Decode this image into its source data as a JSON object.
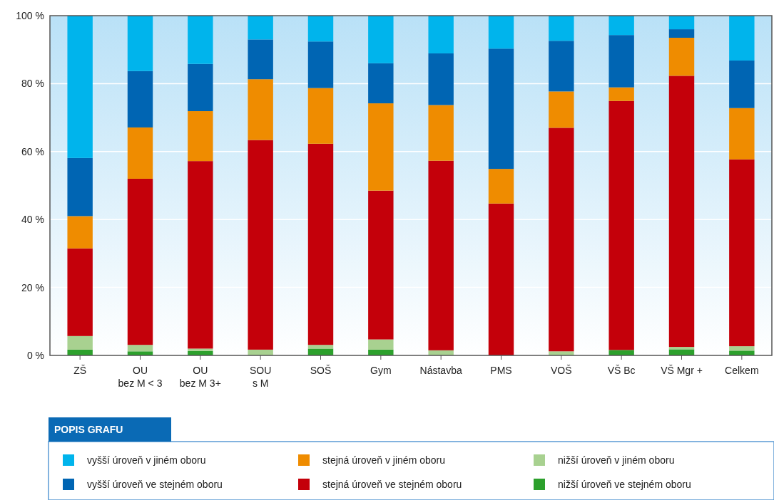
{
  "chart_data": {
    "type": "bar",
    "stacked": true,
    "categories": [
      "ZŠ",
      "OU\nbez M < 3",
      "OU\nbez M 3+",
      "SOU\ns M",
      "SOŠ",
      "Gym",
      "Nástavba",
      "PMS",
      "VOŠ",
      "VŠ Bc",
      "VŠ Mgr +",
      "Celkem"
    ],
    "series": [
      {
        "name": "nižší úroveň ve stejném oboru",
        "color": "#2ca02c",
        "values": [
          1.7,
          1.2,
          1.3,
          0,
          2.0,
          1.7,
          0,
          0,
          0,
          1.6,
          1.8,
          1.4
        ]
      },
      {
        "name": "nižší úroveň v jiném oboru",
        "color": "#a8d190",
        "values": [
          4.0,
          1.9,
          0.7,
          1.7,
          1.1,
          3.0,
          1.5,
          0,
          1.2,
          0,
          0.7,
          1.3
        ]
      },
      {
        "name": "stejná úroveň ve stejném oboru",
        "color": "#c4000a",
        "values": [
          25.8,
          48.9,
          55.2,
          61.7,
          59.2,
          43.8,
          55.8,
          44.7,
          65.8,
          73.3,
          79.8,
          55.0
        ]
      },
      {
        "name": "stejná úroveň v jiném oboru",
        "color": "#ef8c00",
        "values": [
          9.5,
          15.1,
          14.7,
          17.9,
          16.4,
          25.7,
          16.4,
          10.2,
          10.7,
          4.0,
          11.2,
          15.1
        ]
      },
      {
        "name": "vyšší úroveň ve stejném oboru",
        "color": "#0065b3",
        "values": [
          17.1,
          16.6,
          13.9,
          11.7,
          13.7,
          11.8,
          15.2,
          35.4,
          14.9,
          15.4,
          2.5,
          14.0
        ]
      },
      {
        "name": "vyšší úroveň v jiném oboru",
        "color": "#00b4ec",
        "values": [
          41.9,
          16.3,
          14.2,
          7.0,
          7.6,
          14.0,
          11.1,
          9.7,
          7.4,
          5.7,
          4.0,
          13.2
        ]
      }
    ],
    "ylim": [
      0,
      100
    ],
    "yticks": [
      {
        "value": 0,
        "label": "0 %"
      },
      {
        "value": 20,
        "label": "20 %"
      },
      {
        "value": 40,
        "label": "40 %"
      },
      {
        "value": 60,
        "label": "60 %"
      },
      {
        "value": 80,
        "label": "80 %"
      },
      {
        "value": 100,
        "label": "100 %"
      }
    ],
    "grid": "y",
    "legend": "bottom",
    "legend_title": "POPIS GRAFU"
  }
}
